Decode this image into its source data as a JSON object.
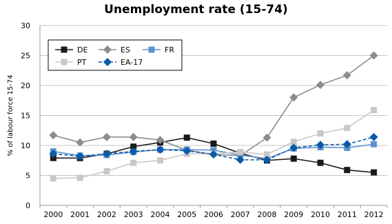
{
  "chart_data": {
    "type": "line",
    "title": "Unemployment rate (15-74)",
    "xlabel": "",
    "ylabel": "% of labour force 15-74",
    "ylim": [
      0,
      30
    ],
    "yticks": [
      0,
      5,
      10,
      15,
      20,
      25,
      30
    ],
    "grid": "horizontal",
    "legend_position": "top-left",
    "categories": [
      "2000",
      "2001",
      "2002",
      "2003",
      "2004",
      "2005",
      "2006",
      "2007",
      "2008",
      "2009",
      "2010",
      "2011",
      "2012"
    ],
    "series": [
      {
        "name": "DE",
        "color": "#1a1a1a",
        "marker": "square",
        "dash": "solid",
        "values": [
          7.9,
          7.9,
          8.6,
          9.8,
          10.5,
          11.3,
          10.3,
          8.7,
          7.5,
          7.8,
          7.1,
          5.9,
          5.5
        ]
      },
      {
        "name": "ES",
        "color": "#8c8c8c",
        "marker": "diamond",
        "dash": "solid",
        "values": [
          11.7,
          10.5,
          11.4,
          11.4,
          10.9,
          9.2,
          8.5,
          8.3,
          11.3,
          18.0,
          20.1,
          21.7,
          25.0
        ]
      },
      {
        "name": "FR",
        "color": "#5b93cf",
        "marker": "square",
        "dash": "solid",
        "values": [
          9.0,
          8.3,
          8.4,
          8.9,
          9.3,
          9.3,
          9.2,
          8.4,
          7.8,
          9.5,
          9.7,
          9.6,
          10.2
        ]
      },
      {
        "name": "PT",
        "color": "#c8c8c8",
        "marker": "square",
        "dash": "solid",
        "values": [
          4.5,
          4.6,
          5.7,
          7.1,
          7.5,
          8.6,
          8.6,
          8.9,
          8.5,
          10.6,
          12.0,
          12.9,
          15.9
        ]
      },
      {
        "name": "EA-17",
        "color": "#0b5aa8",
        "marker": "diamond",
        "dash": "dashed",
        "values": [
          8.6,
          8.2,
          8.6,
          9.0,
          9.3,
          9.1,
          8.5,
          7.6,
          7.6,
          9.6,
          10.1,
          10.2,
          11.4
        ]
      }
    ]
  }
}
